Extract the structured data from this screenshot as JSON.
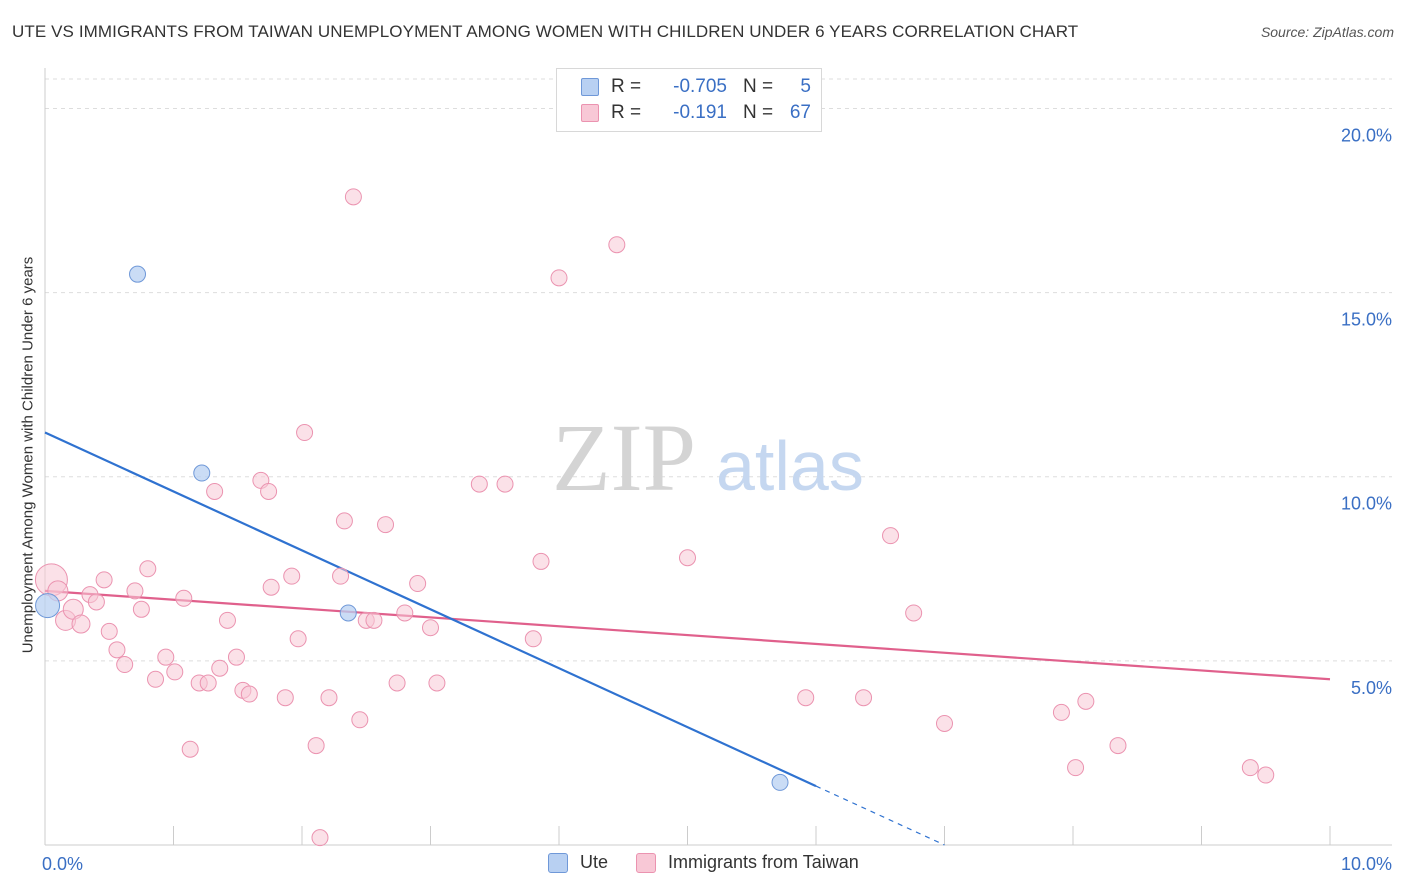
{
  "title": "UTE VS IMMIGRANTS FROM TAIWAN UNEMPLOYMENT AMONG WOMEN WITH CHILDREN UNDER 6 YEARS CORRELATION CHART",
  "source": "Source: ZipAtlas.com",
  "watermark": {
    "zip": "ZIP",
    "atlas": "atlas"
  },
  "legend": {
    "r_label": "R =",
    "n_label": "N =",
    "rows": [
      {
        "name": "Ute",
        "r": "-0.705",
        "n": "5"
      },
      {
        "name": "Immigrants from Taiwan",
        "r": "-0.191",
        "n": "67"
      }
    ]
  },
  "colors": {
    "ute_fill": "#b8d0f2",
    "ute_stroke": "#6f98d8",
    "ute_line": "#2f72d0",
    "taiwan_fill": "#f8c8d6",
    "taiwan_stroke": "#eb93b0",
    "taiwan_line": "#e0608c",
    "tick_text": "#3a6fc4",
    "grid": "#dddddd"
  },
  "chart_data": {
    "type": "scatter",
    "title": "UTE VS IMMIGRANTS FROM TAIWAN UNEMPLOYMENT AMONG WOMEN WITH CHILDREN UNDER 6 YEARS CORRELATION CHART",
    "xlabel": "",
    "ylabel": "Unemployment Among Women with Children Under 6 years",
    "xlim": [
      0,
      10
    ],
    "ylim": [
      0,
      20
    ],
    "x_tick_labels": [
      "0.0%",
      "10.0%"
    ],
    "y_ticks": [
      {
        "value": 20,
        "label": "20.0%"
      },
      {
        "value": 15,
        "label": "15.0%"
      },
      {
        "value": 10,
        "label": "10.0%"
      },
      {
        "value": 5,
        "label": "5.0%"
      }
    ],
    "series": [
      {
        "name": "Ute",
        "points": [
          [
            0.02,
            6.5,
            12
          ],
          [
            0.72,
            15.5,
            8
          ],
          [
            1.22,
            10.1,
            8
          ],
          [
            2.36,
            6.3,
            8
          ],
          [
            5.72,
            1.7,
            8
          ]
        ],
        "trend": {
          "x0": 0.0,
          "y0": 11.2,
          "x1": 6.0,
          "y1": 1.6,
          "dash_to_x": 7.0,
          "dash_to_y": 0.0
        }
      },
      {
        "name": "Immigrants from Taiwan",
        "points": [
          [
            0.05,
            7.2,
            16
          ],
          [
            0.1,
            6.9,
            10
          ],
          [
            0.16,
            6.1,
            10
          ],
          [
            0.22,
            6.4,
            10
          ],
          [
            0.28,
            6.0,
            9
          ],
          [
            0.35,
            6.8,
            8
          ],
          [
            0.4,
            6.6,
            8
          ],
          [
            0.46,
            7.2,
            8
          ],
          [
            0.5,
            5.8,
            8
          ],
          [
            0.56,
            5.3,
            8
          ],
          [
            0.62,
            4.9,
            8
          ],
          [
            0.7,
            6.9,
            8
          ],
          [
            0.75,
            6.4,
            8
          ],
          [
            0.8,
            7.5,
            8
          ],
          [
            0.86,
            4.5,
            8
          ],
          [
            0.94,
            5.1,
            8
          ],
          [
            1.01,
            4.7,
            8
          ],
          [
            1.08,
            6.7,
            8
          ],
          [
            1.13,
            2.6,
            8
          ],
          [
            1.2,
            4.4,
            8
          ],
          [
            1.27,
            4.4,
            8
          ],
          [
            1.32,
            9.6,
            8
          ],
          [
            1.36,
            4.8,
            8
          ],
          [
            1.42,
            6.1,
            8
          ],
          [
            1.49,
            5.1,
            8
          ],
          [
            1.54,
            4.2,
            8
          ],
          [
            1.59,
            4.1,
            8
          ],
          [
            1.68,
            9.9,
            8
          ],
          [
            1.74,
            9.6,
            8
          ],
          [
            1.76,
            7.0,
            8
          ],
          [
            1.87,
            4.0,
            8
          ],
          [
            1.92,
            7.3,
            8
          ],
          [
            1.97,
            5.6,
            8
          ],
          [
            2.02,
            11.2,
            8
          ],
          [
            2.11,
            2.7,
            8
          ],
          [
            2.14,
            0.2,
            8
          ],
          [
            2.21,
            4.0,
            8
          ],
          [
            2.3,
            7.3,
            8
          ],
          [
            2.33,
            8.8,
            8
          ],
          [
            2.4,
            17.6,
            8
          ],
          [
            2.45,
            3.4,
            8
          ],
          [
            2.5,
            6.1,
            8
          ],
          [
            2.56,
            6.1,
            8
          ],
          [
            2.65,
            8.7,
            8
          ],
          [
            2.74,
            4.4,
            8
          ],
          [
            2.8,
            6.3,
            8
          ],
          [
            2.9,
            7.1,
            8
          ],
          [
            3.0,
            5.9,
            8
          ],
          [
            3.05,
            4.4,
            8
          ],
          [
            3.38,
            9.8,
            8
          ],
          [
            3.58,
            9.8,
            8
          ],
          [
            3.8,
            5.6,
            8
          ],
          [
            3.86,
            7.7,
            8
          ],
          [
            4.0,
            15.4,
            8
          ],
          [
            4.45,
            16.3,
            8
          ],
          [
            5.0,
            7.8,
            8
          ],
          [
            5.92,
            4.0,
            8
          ],
          [
            6.37,
            4.0,
            8
          ],
          [
            6.58,
            8.4,
            8
          ],
          [
            6.76,
            6.3,
            8
          ],
          [
            7.0,
            3.3,
            8
          ],
          [
            7.91,
            3.6,
            8
          ],
          [
            8.02,
            2.1,
            8
          ],
          [
            8.1,
            3.9,
            8
          ],
          [
            8.35,
            2.7,
            8
          ],
          [
            9.38,
            2.1,
            8
          ],
          [
            9.5,
            1.9,
            8
          ]
        ],
        "trend": {
          "x0": 0.0,
          "y0": 6.9,
          "x1": 10.0,
          "y1": 4.5
        }
      }
    ]
  }
}
